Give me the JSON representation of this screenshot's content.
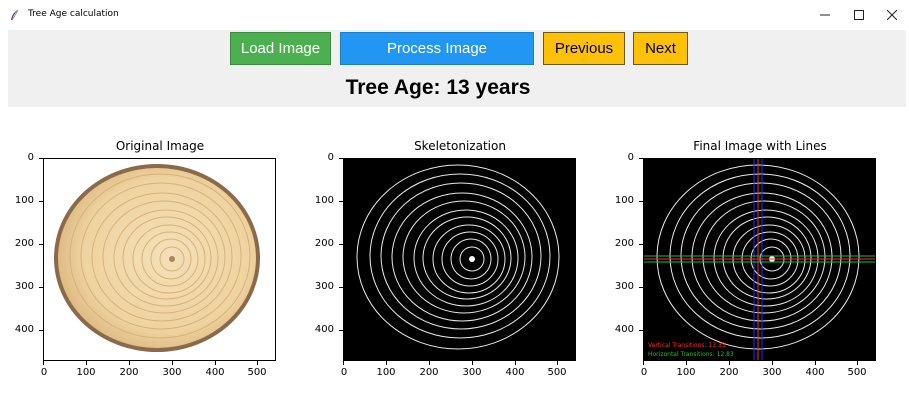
{
  "window": {
    "title": "Tree Age calculation",
    "minimize_icon": "minimize-icon",
    "maximize_icon": "maximize-icon",
    "close_icon": "close-icon"
  },
  "toolbar": {
    "load_label": "Load Image",
    "process_label": "Process Image",
    "previous_label": "Previous",
    "next_label": "Next"
  },
  "result": {
    "age_text": "Tree Age: 13 years"
  },
  "plots": [
    {
      "title": "Original Image",
      "y_ticks": [
        "0",
        "100",
        "200",
        "300",
        "400"
      ],
      "x_ticks": [
        "0",
        "100",
        "200",
        "300",
        "400",
        "500"
      ]
    },
    {
      "title": "Skeletonization",
      "y_ticks": [
        "0",
        "100",
        "200",
        "300",
        "400"
      ],
      "x_ticks": [
        "0",
        "100",
        "200",
        "300",
        "400",
        "500"
      ]
    },
    {
      "title": "Final Image with Lines",
      "y_ticks": [
        "0",
        "100",
        "200",
        "300",
        "400"
      ],
      "x_ticks": [
        "0",
        "100",
        "200",
        "300",
        "400",
        "500"
      ],
      "vertical_text": "Vertical Transitions: 13.33",
      "horizontal_text": "Horizontal Transitions: 12.83"
    }
  ],
  "colors": {
    "load": "#4caf50",
    "process": "#2196f3",
    "nav": "#ffc107",
    "vertical_line": "#2a2aff",
    "horizontal_line": "#22c022",
    "red_line": "#ff2a2a"
  }
}
